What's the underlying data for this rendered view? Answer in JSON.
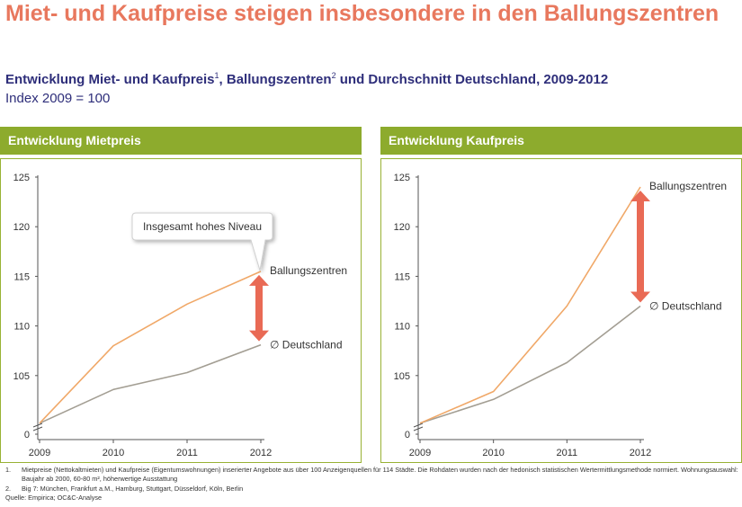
{
  "title": "Miet- und Kaufpreise steigen insbesondere in den Ballungszentren",
  "subtitle": {
    "part1": "Entwicklung Miet- und Kaufpreis",
    "sup1": "1",
    "part2": ", Ballungszentren",
    "sup2": "2",
    "part3": " und Durchschnitt Deutschland, 2009-2012"
  },
  "index_note": "Index 2009 = 100",
  "colors": {
    "title": "#e8785e",
    "subtitle": "#2e2e7a",
    "panel_header": "#8dab2d",
    "ballungszentren_line": "#f0a868",
    "deutschland_line": "#a39e93",
    "arrow": "#e96a55"
  },
  "chart_data": [
    {
      "type": "line",
      "panel_title": "Entwicklung Mietpreis",
      "x": [
        "2009",
        "2010",
        "2011",
        "2012"
      ],
      "yticks": [
        "0",
        "105",
        "110",
        "115",
        "120",
        "125"
      ],
      "y_axis_break": true,
      "ylim": [
        100,
        125
      ],
      "series": [
        {
          "name": "Ballungszentren",
          "values": [
            100.2,
            108.0,
            112.2,
            115.5
          ]
        },
        {
          "name": "∅ Deutschland",
          "values": [
            100.2,
            103.6,
            105.3,
            108.1
          ]
        }
      ],
      "callout": "Insgesamt hohes Niveau",
      "arrow_between_series_at": "2012"
    },
    {
      "type": "line",
      "panel_title": "Entwicklung Kaufpreis",
      "x": [
        "2009",
        "2010",
        "2011",
        "2012"
      ],
      "yticks": [
        "0",
        "105",
        "110",
        "115",
        "120",
        "125"
      ],
      "y_axis_break": true,
      "ylim": [
        100,
        125
      ],
      "series": [
        {
          "name": "Ballungszentren",
          "values": [
            100.2,
            103.4,
            112.0,
            124.0
          ]
        },
        {
          "name": "∅ Deutschland",
          "values": [
            100.2,
            102.6,
            106.3,
            112.0
          ]
        }
      ],
      "arrow_between_series_at": "2012"
    }
  ],
  "footnotes": [
    {
      "num": "1.",
      "text": "Mietpreise (Nettokaltmieten) und Kaufpreise (Eigentumswohnungen) inserierter Angebote aus über 100 Anzeigenquellen für 114 Städte. Die Rohdaten wurden nach der hedonisch statistischen Wertermittlungsmethode normiert. Wohnungsauswahl: Baujahr ab 2000, 60-80 m², höherwertige Ausstattung"
    },
    {
      "num": "2.",
      "text": "Big 7: München, Frankfurt a.M., Hamburg, Stuttgart, Düsseldorf, Köln, Berlin"
    }
  ],
  "source": "Quelle: Empirica; OC&C-Analyse"
}
